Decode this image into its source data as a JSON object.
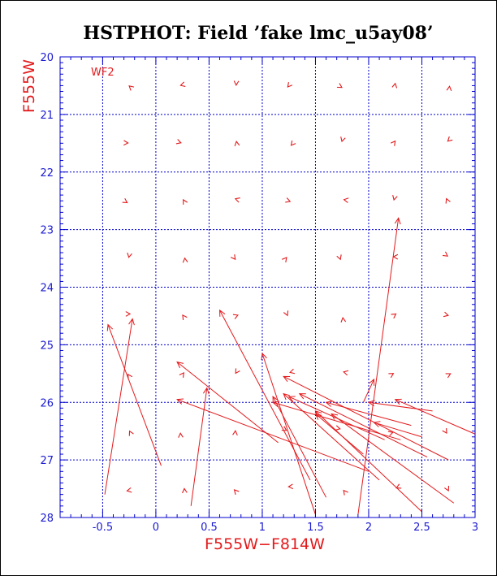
{
  "chart_data": {
    "type": "scatter",
    "title": "HSTPHOT: Field ’fake lmc_u5ay08’",
    "xlabel": "F555W−F814W",
    "ylabel": "F555W",
    "panel_label": "WF2",
    "xlim": [
      -0.9,
      3.0
    ],
    "ylim": [
      28,
      20
    ],
    "x_ticks": [
      -0.5,
      0,
      0.5,
      1,
      1.5,
      2,
      2.5,
      3
    ],
    "x_tick_labels": [
      "-0.5",
      "0",
      "0.5",
      "1",
      "1.5",
      "2",
      "2.5",
      "3"
    ],
    "y_ticks": [
      20,
      21,
      22,
      23,
      24,
      25,
      26,
      27,
      28
    ],
    "y_tick_labels": [
      "20",
      "21",
      "22",
      "23",
      "24",
      "25",
      "26",
      "27",
      "28"
    ],
    "grid": true,
    "colors": {
      "grid": "#0000cc",
      "data": "#e31a1c",
      "axis": "#0000cc",
      "title": "#000000"
    },
    "grid_input_x": [
      -0.25,
      0.25,
      0.75,
      1.25,
      1.75,
      2.25,
      2.75
    ],
    "grid_input_y": [
      20.5,
      21.5,
      22.5,
      23.5,
      24.5,
      25.5,
      26.5,
      27.5
    ],
    "vectors": [
      {
        "x": 0.05,
        "y": 27.1,
        "x2": -0.45,
        "y2": 24.65
      },
      {
        "x": -0.48,
        "y": 27.6,
        "x2": -0.22,
        "y2": 24.55
      },
      {
        "x": 0.33,
        "y": 27.8,
        "x2": 0.48,
        "y2": 25.75
      },
      {
        "x": 1.15,
        "y": 26.7,
        "x2": 0.2,
        "y2": 25.3
      },
      {
        "x": 1.45,
        "y": 27.35,
        "x2": 0.6,
        "y2": 24.4
      },
      {
        "x": 1.5,
        "y": 27.95,
        "x2": 1.0,
        "y2": 25.15
      },
      {
        "x": 1.6,
        "y": 27.65,
        "x2": 1.1,
        "y2": 25.9
      },
      {
        "x": 1.9,
        "y": 27.95,
        "x2": 2.28,
        "y2": 22.8
      },
      {
        "x": 2.1,
        "y": 27.35,
        "x2": 1.2,
        "y2": 25.85
      },
      {
        "x": 2.5,
        "y": 27.9,
        "x2": 1.5,
        "y2": 26.15
      },
      {
        "x": 2.8,
        "y": 27.75,
        "x2": 1.65,
        "y2": 26.2
      },
      {
        "x": 2.75,
        "y": 27.0,
        "x2": 1.2,
        "y2": 25.55
      },
      {
        "x": 2.55,
        "y": 26.95,
        "x2": 1.35,
        "y2": 25.85
      },
      {
        "x": 2.3,
        "y": 26.65,
        "x2": 1.1,
        "y2": 26.0
      },
      {
        "x": 2.0,
        "y": 27.2,
        "x2": 0.2,
        "y2": 25.95
      },
      {
        "x": 2.15,
        "y": 26.65,
        "x2": 1.25,
        "y2": 25.9
      },
      {
        "x": 2.4,
        "y": 26.4,
        "x2": 1.6,
        "y2": 26.0
      },
      {
        "x": 2.5,
        "y": 26.6,
        "x2": 2.05,
        "y2": 26.35
      },
      {
        "x": 3.0,
        "y": 26.55,
        "x2": 2.25,
        "y2": 25.95
      },
      {
        "x": 2.6,
        "y": 26.15,
        "x2": 2.0,
        "y2": 26.0
      },
      {
        "x": 1.95,
        "y": 26.0,
        "x2": 2.05,
        "y2": 25.6
      },
      {
        "x": 1.95,
        "y": 26.9,
        "x2": 1.5,
        "y2": 26.2
      }
    ]
  }
}
